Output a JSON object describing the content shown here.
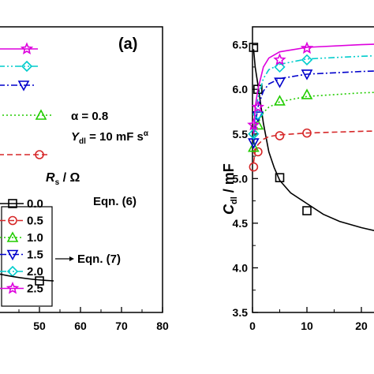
{
  "chart_data": [
    {
      "type": "line",
      "panel_label": "(a)",
      "xlim": [
        40,
        80
      ],
      "x_ticks": [
        "50",
        "60",
        "70",
        "80"
      ],
      "annotations": {
        "alpha": "α = 0.8",
        "ydl_main": "Y",
        "ydl_sub": "dl",
        "ydl_rest": " = 10 mF s",
        "ydl_sup": "α",
        "eqn7": "Eqn. (7)"
      },
      "legend": {
        "title_main": "R",
        "title_sub": "s",
        "title_unit": " / Ω",
        "eqn6": "Eqn. (6)",
        "entries": [
          {
            "label": "0.0",
            "color": "#000000",
            "marker": "square"
          },
          {
            "label": "0.5",
            "color": "#d62728",
            "marker": "circle"
          },
          {
            "label": "1.0",
            "color": "#22cc00",
            "marker": "triangle-up"
          },
          {
            "label": "1.5",
            "color": "#0000cc",
            "marker": "triangle-down"
          },
          {
            "label": "2.0",
            "color": "#00cccc",
            "marker": "diamond"
          },
          {
            "label": "2.5",
            "color": "#dd00dd",
            "marker": "star"
          }
        ]
      },
      "visible_marker": {
        "x": 50,
        "series": "0.0"
      }
    },
    {
      "type": "line",
      "ylabel_main": "C",
      "ylabel_sub": "dl",
      "ylabel_unit": " / mF",
      "xlim": [
        0,
        30
      ],
      "ylim": [
        3.5,
        6.7
      ],
      "x_ticks": [
        0,
        10,
        20
      ],
      "y_ticks": [
        "3.5",
        "4.0",
        "4.5",
        "5.0",
        "5.5",
        "6.0",
        "6.5"
      ],
      "series": [
        {
          "name": "0.0",
          "color": "#000000",
          "style": "solid",
          "marker": "square",
          "points": [
            [
              0.2,
              6.47
            ],
            [
              1,
              6.0
            ],
            [
              5,
              5.01
            ],
            [
              10,
              4.64
            ]
          ],
          "curve": [
            [
              0.2,
              6.45
            ],
            [
              0.5,
              6.25
            ],
            [
              1,
              6.05
            ],
            [
              2,
              5.62
            ],
            [
              3,
              5.3
            ],
            [
              4,
              5.12
            ],
            [
              5,
              4.98
            ],
            [
              7,
              4.84
            ],
            [
              10,
              4.72
            ],
            [
              13,
              4.6
            ],
            [
              16,
              4.52
            ],
            [
              20,
              4.45
            ],
            [
              25,
              4.38
            ],
            [
              30,
              4.32
            ]
          ]
        },
        {
          "name": "0.5",
          "color": "#d62728",
          "style": "dashed",
          "marker": "circle",
          "points": [
            [
              0.2,
              5.13
            ],
            [
              1,
              5.3
            ],
            [
              5,
              5.48
            ],
            [
              10,
              5.51
            ]
          ],
          "curve": [
            [
              0.2,
              5.18
            ],
            [
              0.5,
              5.3
            ],
            [
              1,
              5.38
            ],
            [
              2,
              5.44
            ],
            [
              3,
              5.47
            ],
            [
              5,
              5.49
            ],
            [
              10,
              5.51
            ],
            [
              20,
              5.53
            ],
            [
              30,
              5.54
            ]
          ]
        },
        {
          "name": "1.0",
          "color": "#22cc00",
          "style": "dotted",
          "marker": "triangle-up",
          "points": [
            [
              0.2,
              5.35
            ],
            [
              1,
              5.6
            ],
            [
              5,
              5.87
            ],
            [
              10,
              5.94
            ]
          ],
          "curve": [
            [
              0.2,
              5.3
            ],
            [
              0.5,
              5.48
            ],
            [
              1,
              5.62
            ],
            [
              2,
              5.74
            ],
            [
              3,
              5.8
            ],
            [
              5,
              5.86
            ],
            [
              10,
              5.92
            ],
            [
              20,
              5.96
            ],
            [
              30,
              5.98
            ]
          ]
        },
        {
          "name": "1.5",
          "color": "#0000cc",
          "style": "dashdot",
          "marker": "triangle-down",
          "points": [
            [
              0.2,
              5.4
            ],
            [
              1,
              5.7
            ],
            [
              5,
              6.08
            ],
            [
              10,
              6.17
            ]
          ],
          "curve": [
            [
              0.2,
              5.38
            ],
            [
              0.5,
              5.6
            ],
            [
              1,
              5.8
            ],
            [
              2,
              5.98
            ],
            [
              3,
              6.06
            ],
            [
              5,
              6.12
            ],
            [
              10,
              6.17
            ],
            [
              20,
              6.2
            ],
            [
              30,
              6.22
            ]
          ]
        },
        {
          "name": "2.0",
          "color": "#00cccc",
          "style": "dashdotdot",
          "marker": "diamond",
          "points": [
            [
              0.2,
              5.5
            ],
            [
              1,
              5.72
            ],
            [
              5,
              6.25
            ],
            [
              10,
              6.33
            ]
          ],
          "curve": [
            [
              0.2,
              5.45
            ],
            [
              0.5,
              5.7
            ],
            [
              1,
              5.9
            ],
            [
              2,
              6.12
            ],
            [
              3,
              6.22
            ],
            [
              5,
              6.28
            ],
            [
              10,
              6.34
            ],
            [
              20,
              6.37
            ],
            [
              30,
              6.39
            ]
          ]
        },
        {
          "name": "2.5",
          "color": "#dd00dd",
          "style": "solid",
          "marker": "star",
          "points": [
            [
              0.2,
              5.6
            ],
            [
              1,
              5.8
            ],
            [
              5,
              6.33
            ],
            [
              10,
              6.46
            ]
          ],
          "curve": [
            [
              0.2,
              5.5
            ],
            [
              0.5,
              5.8
            ],
            [
              1,
              6.0
            ],
            [
              2,
              6.25
            ],
            [
              3,
              6.35
            ],
            [
              5,
              6.42
            ],
            [
              10,
              6.47
            ],
            [
              20,
              6.5
            ],
            [
              30,
              6.52
            ]
          ]
        }
      ]
    }
  ]
}
